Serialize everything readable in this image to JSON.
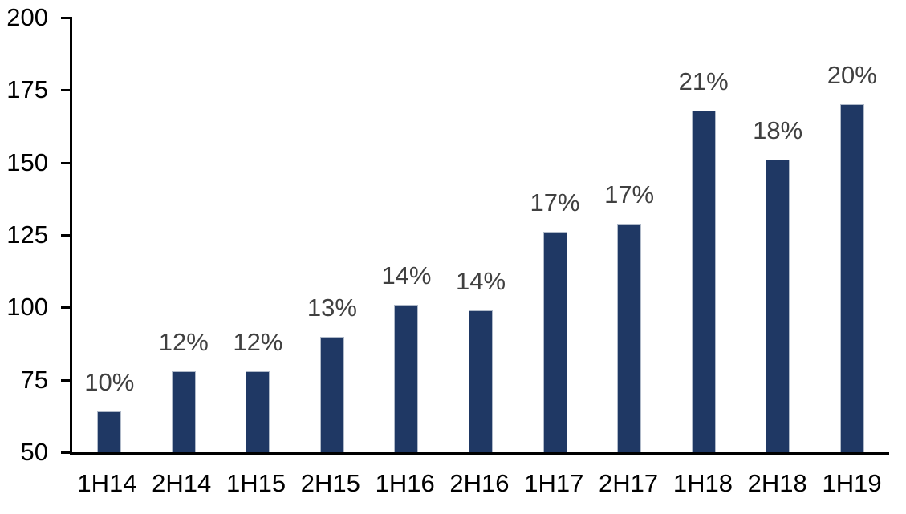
{
  "chart_data": {
    "type": "bar",
    "title": "",
    "xlabel": "",
    "ylabel": "",
    "categories": [
      "1H14",
      "2H14",
      "1H15",
      "2H15",
      "1H16",
      "2H16",
      "1H17",
      "2H17",
      "1H18",
      "2H18",
      "1H19"
    ],
    "values": [
      64,
      78,
      78,
      90,
      101,
      99,
      126,
      129,
      168,
      151,
      170
    ],
    "data_labels": [
      "10%",
      "12%",
      "12%",
      "13%",
      "14%",
      "14%",
      "17%",
      "17%",
      "21%",
      "18%",
      "20%"
    ],
    "ylim": [
      50,
      200
    ],
    "yticks": [
      200,
      175,
      150,
      125,
      100,
      75,
      50
    ],
    "grid": false,
    "legend": false,
    "colors": {
      "bar_fill": "#1F3864",
      "bar_border": "#B0BAC9",
      "data_label": "#404040",
      "tick_label": "#000000",
      "axis_line": "#000000",
      "background": "#FFFFFF"
    }
  }
}
